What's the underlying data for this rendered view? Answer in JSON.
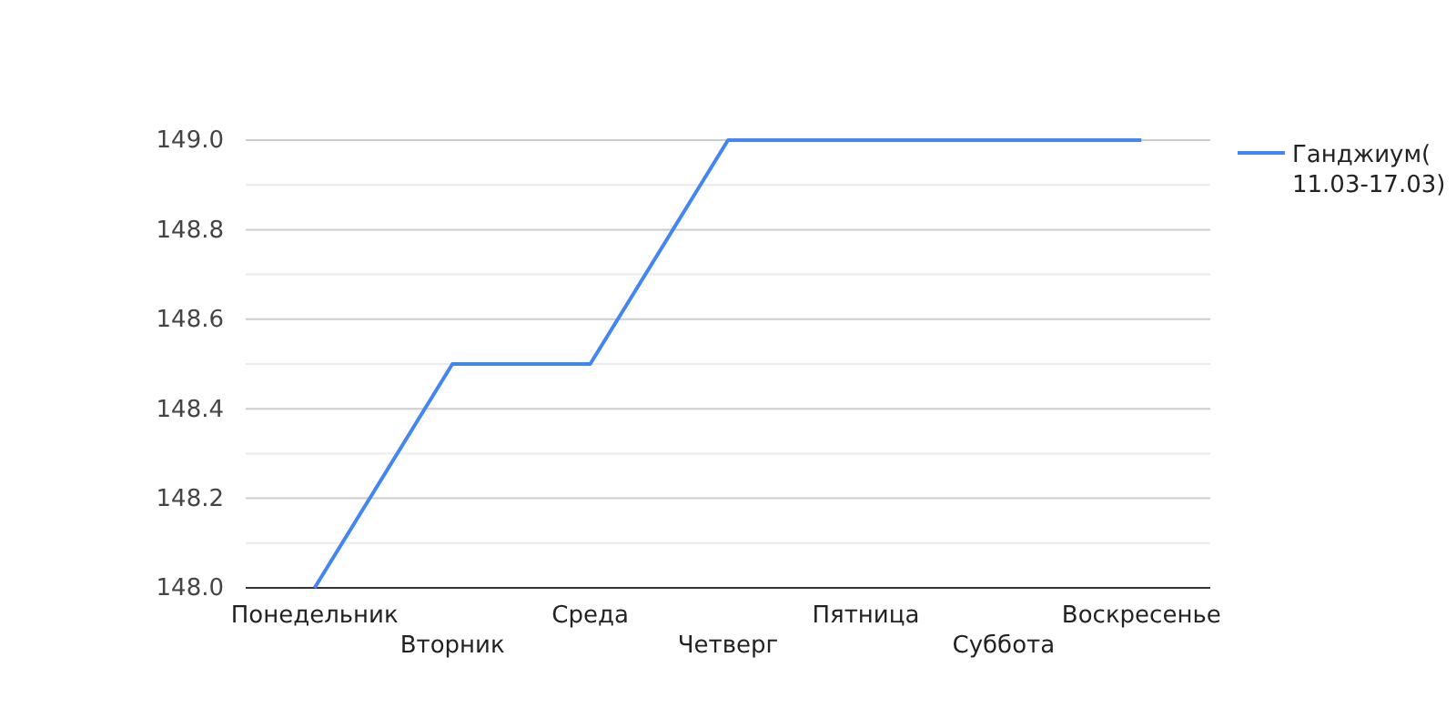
{
  "chart_data": {
    "type": "line",
    "categories": [
      "Понедельник",
      "Вторник",
      "Среда",
      "Четверг",
      "Пятница",
      "Суббота",
      "Воскресенье"
    ],
    "series": [
      {
        "name": "Ганджиум(\n11.03-17.03)",
        "color": "#4285f4",
        "values": [
          148.0,
          148.5,
          148.5,
          149.0,
          149.0,
          149.0,
          149.0
        ]
      }
    ],
    "ylim": [
      148.0,
      149.0
    ],
    "yticks": [
      {
        "value": 148.0,
        "label": "148.0"
      },
      {
        "value": 148.1,
        "label": null
      },
      {
        "value": 148.2,
        "label": "148.2"
      },
      {
        "value": 148.3,
        "label": null
      },
      {
        "value": 148.4,
        "label": "148.4"
      },
      {
        "value": 148.5,
        "label": null
      },
      {
        "value": 148.6,
        "label": "148.6"
      },
      {
        "value": 148.7,
        "label": null
      },
      {
        "value": 148.8,
        "label": "148.8"
      },
      {
        "value": 148.9,
        "label": null
      },
      {
        "value": 149.0,
        "label": "149.0"
      }
    ],
    "grid": "y",
    "legend": "right",
    "marker": "none",
    "line_style": "solid"
  }
}
